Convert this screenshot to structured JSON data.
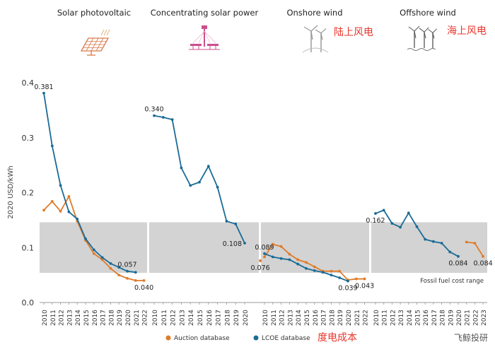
{
  "chart_data": {
    "type": "line",
    "ylabel": "2020 USD/kWh",
    "ylim": [
      0,
      0.4
    ],
    "yticks": [
      "0.0",
      "0.1",
      "0.2",
      "0.3",
      "0.4"
    ],
    "fossil_fuel_range": [
      0.054,
      0.146
    ],
    "fossil_fuel_label": "Fossil fuel cost range",
    "legend": {
      "auction": "Auction database",
      "lcoe": "LCOE database",
      "note": "度电成本"
    },
    "colors": {
      "auction": "#e07b2a",
      "lcoe": "#1a6b96",
      "band": "#d3d3d3",
      "note": "#e8352c"
    },
    "watermark": "飞鲸投研",
    "panels": [
      {
        "title": "Solar photovoltaic",
        "subtitle": "",
        "icon": "solar-panel-icon",
        "years": [
          "2010",
          "2011",
          "2012",
          "2013",
          "2014",
          "2015",
          "2016",
          "2017",
          "2018",
          "2019",
          "2020",
          "2021",
          "2022"
        ],
        "lcoe": [
          0.381,
          0.285,
          0.213,
          0.165,
          0.152,
          0.116,
          0.096,
          0.082,
          0.071,
          0.064,
          0.057,
          0.055,
          null
        ],
        "auction": [
          0.168,
          0.184,
          0.166,
          0.193,
          0.148,
          0.113,
          0.089,
          0.078,
          0.062,
          0.05,
          0.044,
          0.04,
          0.04
        ],
        "labels": [
          {
            "series": "lcoe",
            "index": 0,
            "text": "0.381",
            "pos": "above"
          },
          {
            "series": "lcoe",
            "index": 10,
            "text": "0.057",
            "pos": "above"
          },
          {
            "series": "auction",
            "index": 12,
            "text": "0.040",
            "pos": "below"
          }
        ]
      },
      {
        "title": "Concentrating solar power",
        "subtitle": "",
        "icon": "csp-tower-icon",
        "years": [
          "2010",
          "2011",
          "2012",
          "2013",
          "2014",
          "2015",
          "2016",
          "2017",
          "2018",
          "2019",
          "2020"
        ],
        "lcoe": [
          0.34,
          0.337,
          0.333,
          0.245,
          0.213,
          0.219,
          0.248,
          0.21,
          0.148,
          0.143,
          0.108
        ],
        "auction": [
          null,
          null,
          null,
          null,
          null,
          null,
          null,
          null,
          null,
          null,
          null
        ],
        "labels": [
          {
            "series": "lcoe",
            "index": 0,
            "text": "0.340",
            "pos": "above"
          },
          {
            "series": "lcoe",
            "index": 10,
            "text": "0.108",
            "pos": "left"
          }
        ]
      },
      {
        "title": "Onshore wind",
        "subtitle": "陆上风电",
        "icon": "onshore-wind-icon",
        "years": [
          "2010",
          "2011",
          "2012",
          "2013",
          "2014",
          "2015",
          "2016",
          "2017",
          "2018",
          "2019",
          "2020",
          "2021",
          "2022"
        ],
        "lcoe": [
          0.089,
          0.083,
          0.08,
          0.078,
          0.07,
          0.062,
          0.058,
          0.055,
          0.05,
          0.045,
          0.039,
          null,
          null
        ],
        "auction": [
          0.083,
          0.106,
          0.102,
          0.088,
          0.078,
          0.073,
          0.065,
          0.057,
          0.057,
          0.057,
          0.041,
          0.043,
          0.043
        ],
        "extra_points": [
          {
            "series": "auction",
            "x": -0.5,
            "y": 0.076
          }
        ],
        "labels": [
          {
            "series": "lcoe",
            "index": 0,
            "text": "0.089",
            "pos": "above"
          },
          {
            "series": "extra",
            "index": 0,
            "text": "0.076",
            "pos": "below"
          },
          {
            "series": "lcoe",
            "index": 10,
            "text": "0.039",
            "pos": "below"
          },
          {
            "series": "auction",
            "index": 12,
            "text": "0.043",
            "pos": "below"
          }
        ]
      },
      {
        "title": "Offshore wind",
        "subtitle": "海上风电",
        "icon": "offshore-wind-icon",
        "years": [
          "2010",
          "2011",
          "2012",
          "2013",
          "2014",
          "2015",
          "2016",
          "2017",
          "2018",
          "2019",
          "2020",
          "2021",
          "2022",
          "2023"
        ],
        "lcoe": [
          0.162,
          0.168,
          0.144,
          0.137,
          0.163,
          0.138,
          0.115,
          0.111,
          0.108,
          0.092,
          0.084,
          null,
          null,
          null
        ],
        "auction": [
          null,
          null,
          null,
          null,
          null,
          null,
          null,
          null,
          null,
          null,
          null,
          0.11,
          0.108,
          0.084
        ],
        "labels": [
          {
            "series": "lcoe",
            "index": 0,
            "text": "0.162",
            "pos": "below"
          },
          {
            "series": "lcoe",
            "index": 10,
            "text": "0.084",
            "pos": "below"
          },
          {
            "series": "auction",
            "index": 13,
            "text": "0.084",
            "pos": "below"
          }
        ]
      }
    ]
  }
}
